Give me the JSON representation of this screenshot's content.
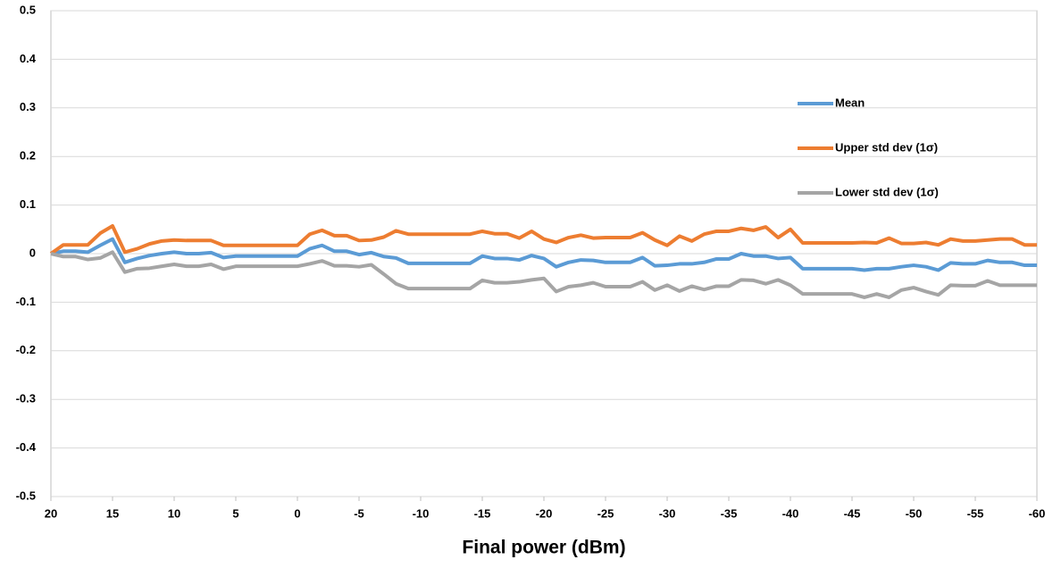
{
  "chart_data": {
    "type": "line",
    "x_label": "Final power (dBm)",
    "x": [
      20,
      19,
      18,
      17,
      16,
      15,
      14,
      13,
      12,
      11,
      10,
      9,
      8,
      7,
      6,
      5,
      4,
      3,
      2,
      1,
      0,
      -1,
      -2,
      -3,
      -4,
      -5,
      -6,
      -7,
      -8,
      -9,
      -10,
      -11,
      -12,
      -13,
      -14,
      -15,
      -16,
      -17,
      -18,
      -19,
      -20,
      -21,
      -22,
      -23,
      -24,
      -25,
      -26,
      -27,
      -28,
      -29,
      -30,
      -31,
      -32,
      -33,
      -34,
      -35,
      -36,
      -37,
      -38,
      -39,
      -40,
      -41,
      -42,
      -43,
      -44,
      -45,
      -46,
      -47,
      -48,
      -49,
      -50,
      -51,
      -52,
      -53,
      -54,
      -55,
      -56,
      -57,
      -58,
      -59,
      -60
    ],
    "series": [
      {
        "name": "Mean",
        "color": "#5b9bd5",
        "values": [
          0,
          0.005,
          0.005,
          0.003,
          0.017,
          0.03,
          -0.018,
          -0.01,
          -0.004,
          0,
          0.003,
          0,
          0,
          0.002,
          -0.008,
          -0.005,
          -0.005,
          -0.005,
          -0.005,
          -0.005,
          -0.005,
          0.01,
          0.017,
          0.005,
          0.005,
          -0.002,
          0.002,
          -0.006,
          -0.009,
          -0.02,
          -0.02,
          -0.02,
          -0.02,
          -0.02,
          -0.02,
          -0.005,
          -0.01,
          -0.01,
          -0.013,
          -0.004,
          -0.01,
          -0.027,
          -0.018,
          -0.013,
          -0.014,
          -0.018,
          -0.018,
          -0.018,
          -0.008,
          -0.025,
          -0.024,
          -0.021,
          -0.021,
          -0.018,
          -0.011,
          -0.011,
          0,
          -0.005,
          -0.005,
          -0.01,
          -0.008,
          -0.031,
          -0.031,
          -0.031,
          -0.031,
          -0.031,
          -0.034,
          -0.031,
          -0.031,
          -0.027,
          -0.024,
          -0.027,
          -0.034,
          -0.019,
          -0.021,
          -0.021,
          -0.014,
          -0.018,
          -0.018,
          -0.024,
          -0.024
        ]
      },
      {
        "name": "Upper std dev (1σ)",
        "color": "#ed7d31",
        "values": [
          0,
          0.018,
          0.018,
          0.018,
          0.042,
          0.057,
          0.003,
          0.01,
          0.02,
          0.026,
          0.028,
          0.027,
          0.027,
          0.027,
          0.017,
          0.017,
          0.017,
          0.017,
          0.017,
          0.017,
          0.017,
          0.04,
          0.048,
          0.037,
          0.037,
          0.027,
          0.028,
          0.034,
          0.047,
          0.04,
          0.04,
          0.04,
          0.04,
          0.04,
          0.04,
          0.046,
          0.041,
          0.041,
          0.032,
          0.046,
          0.03,
          0.023,
          0.033,
          0.038,
          0.032,
          0.033,
          0.033,
          0.033,
          0.043,
          0.028,
          0.017,
          0.036,
          0.026,
          0.04,
          0.046,
          0.046,
          0.052,
          0.048,
          0.055,
          0.033,
          0.05,
          0.022,
          0.022,
          0.022,
          0.022,
          0.022,
          0.023,
          0.022,
          0.032,
          0.021,
          0.021,
          0.023,
          0.018,
          0.03,
          0.026,
          0.026,
          0.028,
          0.03,
          0.03,
          0.018,
          0.018
        ]
      },
      {
        "name": "Lower std dev (1σ)",
        "color": "#a5a5a5",
        "values": [
          0,
          -0.006,
          -0.006,
          -0.012,
          -0.009,
          0.003,
          -0.038,
          -0.031,
          -0.03,
          -0.026,
          -0.022,
          -0.026,
          -0.026,
          -0.022,
          -0.032,
          -0.026,
          -0.026,
          -0.026,
          -0.026,
          -0.026,
          -0.026,
          -0.021,
          -0.015,
          -0.025,
          -0.025,
          -0.027,
          -0.023,
          -0.042,
          -0.062,
          -0.072,
          -0.072,
          -0.072,
          -0.072,
          -0.072,
          -0.072,
          -0.055,
          -0.06,
          -0.06,
          -0.058,
          -0.054,
          -0.051,
          -0.078,
          -0.068,
          -0.065,
          -0.06,
          -0.068,
          -0.068,
          -0.068,
          -0.058,
          -0.075,
          -0.065,
          -0.077,
          -0.067,
          -0.074,
          -0.067,
          -0.067,
          -0.054,
          -0.055,
          -0.062,
          -0.054,
          -0.065,
          -0.083,
          -0.083,
          -0.083,
          -0.083,
          -0.083,
          -0.09,
          -0.083,
          -0.09,
          -0.075,
          -0.07,
          -0.078,
          -0.085,
          -0.065,
          -0.066,
          -0.066,
          -0.056,
          -0.065,
          -0.065,
          -0.065,
          -0.065
        ]
      }
    ],
    "xlim": [
      20,
      -60
    ],
    "xticks": [
      20,
      15,
      10,
      5,
      0,
      -5,
      -10,
      -15,
      -20,
      -25,
      -30,
      -35,
      -40,
      -45,
      -50,
      -55,
      -60
    ],
    "ylim": [
      -0.5,
      0.5
    ],
    "yticks": [
      -0.5,
      -0.4,
      -0.3,
      -0.2,
      -0.1,
      0,
      0.1,
      0.2,
      0.3,
      0.4,
      0.5
    ],
    "grid": true,
    "legend": "right"
  }
}
